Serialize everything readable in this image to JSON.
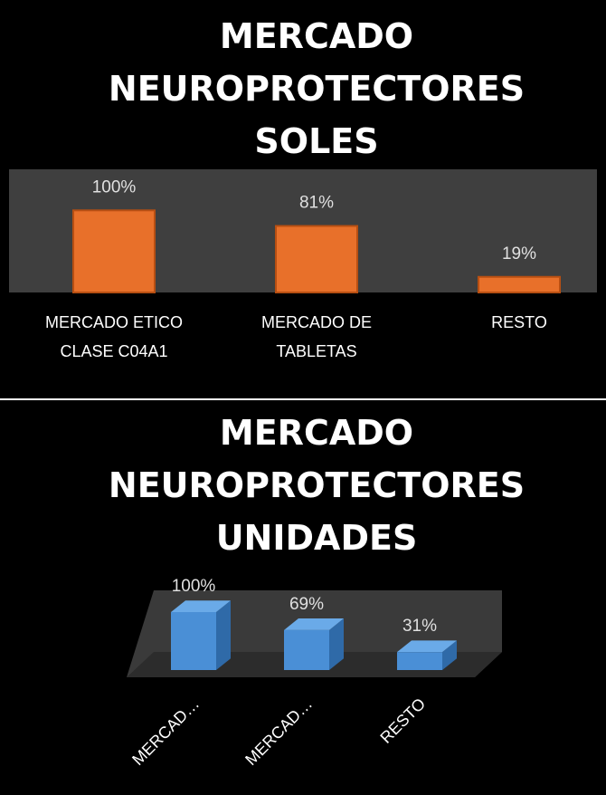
{
  "chart_data": [
    {
      "type": "bar",
      "title": "MERCADO NEUROPROTECTORES SOLES",
      "categories": [
        "MERCADO ETICO CLASE C04A1",
        "MERCADO DE TABLETAS",
        "RESTO"
      ],
      "values": [
        100,
        81,
        19
      ],
      "value_labels": [
        "100%",
        "81%",
        "19%"
      ],
      "color": "#e8702a",
      "ylim": [
        0,
        150
      ]
    },
    {
      "type": "bar3d",
      "title": "MERCADO NEUROPROTECTORES UNIDADES",
      "categories": [
        "MERCAD…",
        "MERCAD…",
        "RESTO"
      ],
      "values": [
        100,
        69,
        31
      ],
      "value_labels": [
        "100%",
        "69%",
        "31%"
      ],
      "color": "#4a8fd6",
      "ylim": [
        0,
        150
      ]
    }
  ]
}
